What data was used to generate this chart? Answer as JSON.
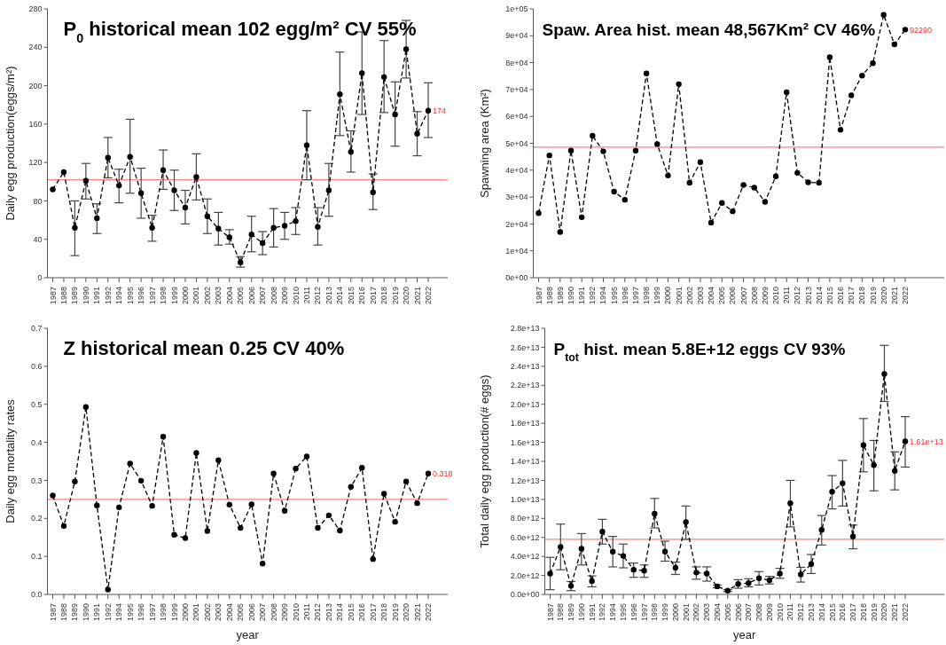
{
  "chart_data": [
    {
      "type": "line",
      "title": "P$_{0}$ historical mean 102 egg/m² CV 55%",
      "ylabel": "Daily egg production(eggs/m²)",
      "marker": "circle",
      "line_style": "dashed",
      "categories": [
        "1987",
        "1988",
        "1989",
        "1990",
        "1991",
        "1992",
        "1994",
        "1995",
        "1996",
        "1997",
        "1998",
        "1999",
        "2000",
        "2001",
        "2002",
        "2003",
        "2004",
        "2005",
        "2006",
        "2007",
        "2008",
        "2009",
        "2010",
        "2011",
        "2012",
        "2013",
        "2014",
        "2015",
        "2016",
        "2017",
        "2018",
        "2019",
        "2020",
        "2021",
        "2022"
      ],
      "series": [
        {
          "color": "#000000",
          "values": [
            92,
            110,
            52,
            101,
            62,
            125,
            96,
            126,
            88,
            52,
            112,
            91,
            73,
            105,
            64,
            51,
            42,
            16,
            45,
            36,
            52,
            54,
            59,
            138,
            53,
            91,
            191,
            131,
            213,
            89,
            209,
            170,
            238,
            150,
            174
          ],
          "errors": [
            null,
            null,
            [
              23,
              80
            ],
            [
              82,
              119
            ],
            [
              46,
              77
            ],
            [
              104,
              146
            ],
            [
              78,
              113
            ],
            [
              88,
              165
            ],
            [
              62,
              114
            ],
            [
              38,
              65
            ],
            [
              92,
              133
            ],
            [
              70,
              112
            ],
            [
              56,
              91
            ],
            [
              81,
              129
            ],
            [
              46,
              82
            ],
            [
              34,
              68
            ],
            [
              35,
              50
            ],
            [
              11,
              22
            ],
            [
              27,
              64
            ],
            [
              24,
              48
            ],
            [
              32,
              72
            ],
            [
              40,
              68
            ],
            [
              45,
              73
            ],
            [
              102,
              174
            ],
            [
              34,
              73
            ],
            [
              64,
              119
            ],
            [
              148,
              235
            ],
            [
              110,
              153
            ],
            [
              170,
              256
            ],
            [
              71,
              108
            ],
            [
              172,
              247
            ],
            [
              137,
              204
            ],
            [
              208,
              268
            ],
            [
              127,
              173
            ],
            [
              146,
              203
            ]
          ]
        }
      ],
      "ylim": [
        0,
        280
      ],
      "yticks": [
        0,
        40,
        80,
        120,
        160,
        200,
        240,
        280
      ],
      "ref_lines": [
        {
          "axis": "y",
          "value": 102,
          "color": "#ff8080"
        }
      ],
      "annotations": [
        {
          "text": "174",
          "x": "2022",
          "y": 174
        }
      ]
    },
    {
      "type": "line",
      "title": "Spaw. Area hist. mean 48,567Km² CV 46%",
      "ylabel": "Spawning area (Km²)",
      "marker": "circle",
      "line_style": "dashed",
      "categories": [
        "1987",
        "1988",
        "1989",
        "1990",
        "1991",
        "1992",
        "1994",
        "1995",
        "1996",
        "1997",
        "1998",
        "1999",
        "2000",
        "2001",
        "2002",
        "2003",
        "2004",
        "2005",
        "2006",
        "2007",
        "2008",
        "2009",
        "2010",
        "2011",
        "2012",
        "2013",
        "2014",
        "2015",
        "2016",
        "2017",
        "2018",
        "2019",
        "2020",
        "2021",
        "2022"
      ],
      "series": [
        {
          "color": "#000000",
          "values": [
            24000,
            45500,
            17000,
            47300,
            22500,
            52800,
            47000,
            32000,
            29000,
            47300,
            76000,
            49700,
            38000,
            72000,
            35300,
            43000,
            20500,
            27800,
            24700,
            34500,
            33500,
            28200,
            37700,
            69000,
            39000,
            35500,
            35300,
            82000,
            55000,
            67800,
            75200,
            79800,
            97800,
            86800,
            92290
          ]
        }
      ],
      "ylim": [
        0,
        100000
      ],
      "yticks": [
        {
          "value": 0,
          "label": "0e+00"
        },
        {
          "value": 10000,
          "label": "1e+04"
        },
        {
          "value": 20000,
          "label": "2e+04"
        },
        {
          "value": 30000,
          "label": "3e+04"
        },
        {
          "value": 40000,
          "label": "4e+04"
        },
        {
          "value": 50000,
          "label": "5e+04"
        },
        {
          "value": 60000,
          "label": "6e+04"
        },
        {
          "value": 70000,
          "label": "7e+04"
        },
        {
          "value": 80000,
          "label": "8e+04"
        },
        {
          "value": 90000,
          "label": "9e+04"
        },
        {
          "value": 100000,
          "label": "1e+05"
        }
      ],
      "ref_lines": [
        {
          "axis": "y",
          "value": 48567,
          "color": "#ff8080"
        }
      ],
      "annotations": [
        {
          "text": "92290",
          "x": "2022",
          "y": 92290
        }
      ]
    },
    {
      "type": "line",
      "title": "Z historical mean 0.25 CV 40%",
      "xlabel": "year",
      "ylabel": "Daily egg mortality rates",
      "marker": "circle",
      "line_style": "dashed",
      "categories": [
        "1987",
        "1988",
        "1989",
        "1990",
        "1991",
        "1992",
        "1994",
        "1995",
        "1996",
        "1997",
        "1998",
        "1999",
        "2000",
        "2001",
        "2002",
        "2003",
        "2004",
        "2005",
        "2006",
        "2007",
        "2008",
        "2009",
        "2010",
        "2011",
        "2012",
        "2013",
        "2014",
        "2015",
        "2016",
        "2017",
        "2018",
        "2019",
        "2020",
        "2021",
        "2022"
      ],
      "series": [
        {
          "color": "#000000",
          "values": [
            0.26,
            0.18,
            0.297,
            0.493,
            0.234,
            0.013,
            0.229,
            0.344,
            0.299,
            0.233,
            0.415,
            0.157,
            0.148,
            0.372,
            0.167,
            0.353,
            0.236,
            0.175,
            0.237,
            0.081,
            0.318,
            0.22,
            0.331,
            0.363,
            0.175,
            0.208,
            0.168,
            0.283,
            0.333,
            0.093,
            0.265,
            0.191,
            0.297,
            0.24,
            0.318
          ]
        }
      ],
      "ylim": [
        0,
        0.7
      ],
      "yticks": [
        {
          "value": 0,
          "label": "0.0"
        },
        0.1,
        0.2,
        0.3,
        0.4,
        0.5,
        0.6,
        0.7
      ],
      "ref_lines": [
        {
          "axis": "y",
          "value": 0.25,
          "color": "#ff8080"
        }
      ],
      "annotations": [
        {
          "text": "0.318",
          "x": "2022",
          "y": 0.318
        }
      ]
    },
    {
      "type": "line",
      "title": "P$_{tot}$ hist. mean 5.8E+12 eggs CV 93%",
      "xlabel": "year",
      "ylabel": "Total daily egg production(# eggs)",
      "marker": "circle",
      "line_style": "dashed",
      "categories": [
        "1987",
        "1988",
        "1989",
        "1990",
        "1991",
        "1992",
        "1994",
        "1995",
        "1996",
        "1997",
        "1998",
        "1999",
        "2000",
        "2001",
        "2002",
        "2003",
        "2004",
        "2005",
        "2006",
        "2007",
        "2008",
        "2009",
        "2010",
        "2011",
        "2012",
        "2013",
        "2014",
        "2015",
        "2016",
        "2017",
        "2018",
        "2019",
        "2020",
        "2021",
        "2022"
      ],
      "series": [
        {
          "color": "#000000",
          "values": [
            2200000000000.0,
            5000000000000.0,
            900000000000.0,
            4800000000000.0,
            1400000000000.0,
            6600000000000.0,
            4500000000000.0,
            4050000000000.0,
            2600000000000.0,
            2500000000000.0,
            8500000000000.0,
            4500000000000.0,
            2800000000000.0,
            7600000000000.0,
            2300000000000.0,
            2200000000000.0,
            850000000000.0,
            400000000000.0,
            1100000000000.0,
            1200000000000.0,
            1700000000000.0,
            1500000000000.0,
            2200000000000.0,
            9600000000000.0,
            2100000000000.0,
            3200000000000.0,
            6800000000000.0,
            10800000000000.0,
            11700000000000.0,
            6100000000000.0,
            15700000000000.0,
            13600000000000.0,
            23200000000000.0,
            13000000000000.0,
            16100000000000.0
          ],
          "errors": [
            [
              500000000000.0,
              3900000000000.0
            ],
            [
              2600000000000.0,
              7400000000000.0
            ],
            [
              400000000000.0,
              1350000000000.0
            ],
            [
              3100000000000.0,
              6400000000000.0
            ],
            [
              800000000000.0,
              1950000000000.0
            ],
            [
              5300000000000.0,
              7900000000000.0
            ],
            [
              2900000000000.0,
              6100000000000.0
            ],
            [
              2800000000000.0,
              5300000000000.0
            ],
            [
              1800000000000.0,
              3300000000000.0
            ],
            [
              1800000000000.0,
              3100000000000.0
            ],
            [
              7000000000000.0,
              10100000000000.0
            ],
            [
              3500000000000.0,
              5600000000000.0
            ],
            [
              2100000000000.0,
              3400000000000.0
            ],
            [
              5800000000000.0,
              9300000000000.0
            ],
            [
              1600000000000.0,
              2900000000000.0
            ],
            [
              1400000000000.0,
              2900000000000.0
            ],
            [
              700000000000.0,
              1000000000000.0
            ],
            [
              300000000000.0,
              500000000000.0
            ],
            [
              650000000000.0,
              1550000000000.0
            ],
            [
              800000000000.0,
              1650000000000.0
            ],
            [
              1000000000000.0,
              2400000000000.0
            ],
            [
              1100000000000.0,
              1900000000000.0
            ],
            [
              1700000000000.0,
              2750000000000.0
            ],
            [
              7100000000000.0,
              12000000000000.0
            ],
            [
              1300000000000.0,
              2850000000000.0
            ],
            [
              2200000000000.0,
              4200000000000.0
            ],
            [
              5200000000000.0,
              8300000000000.0
            ],
            [
              9000000000000.0,
              12500000000000.0
            ],
            [
              9300000000000.0,
              14100000000000.0
            ],
            [
              4800000000000.0,
              7300000000000.0
            ],
            [
              12900000000000.0,
              18500000000000.0
            ],
            [
              10900000000000.0,
              16200000000000.0
            ],
            [
              20300000000000.0,
              26200000000000.0
            ],
            [
              11000000000000.0,
              15000000000000.0
            ],
            [
              13400000000000.0,
              18700000000000.0
            ]
          ]
        }
      ],
      "ylim": [
        0,
        28000000000000.0
      ],
      "yticks": [
        {
          "value": 0,
          "label": "0.0e+00"
        },
        {
          "value": 2000000000000.0,
          "label": "2.0e+12"
        },
        {
          "value": 4000000000000.0,
          "label": "4.0e+12"
        },
        {
          "value": 6000000000000.0,
          "label": "6.0e+12"
        },
        {
          "value": 8000000000000.0,
          "label": "8.0e+12"
        },
        {
          "value": 10000000000000.0,
          "label": "1.0e+13"
        },
        {
          "value": 12000000000000.0,
          "label": "1.2e+13"
        },
        {
          "value": 14000000000000.0,
          "label": "1.4e+13"
        },
        {
          "value": 16000000000000.0,
          "label": "1.6e+13"
        },
        {
          "value": 18000000000000.0,
          "label": "1.8e+13"
        },
        {
          "value": 20000000000000.0,
          "label": "2.0e+13"
        },
        {
          "value": 22000000000000.0,
          "label": "2.2e+13"
        },
        {
          "value": 24000000000000.0,
          "label": "2.4e+13"
        },
        {
          "value": 26000000000000.0,
          "label": "2.6e+13"
        },
        {
          "value": 28000000000000.0,
          "label": "2.8e+13"
        }
      ],
      "ref_lines": [
        {
          "axis": "y",
          "value": 5800000000000.0,
          "color": "#ff8080"
        }
      ],
      "annotations": [
        {
          "text": "1.61e+13",
          "x": "2022",
          "y": 16100000000000.0
        }
      ]
    }
  ]
}
